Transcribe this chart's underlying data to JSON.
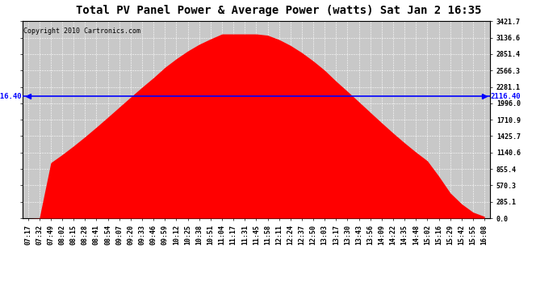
{
  "title": "Total PV Panel Power & Average Power (watts) Sat Jan 2 16:35",
  "copyright": "Copyright 2010 Cartronics.com",
  "avg_power": 2116.4,
  "y_max": 3421.7,
  "y_ticks": [
    0.0,
    285.1,
    570.3,
    855.4,
    1140.6,
    1425.7,
    1710.9,
    1996.0,
    2281.1,
    2566.3,
    2851.4,
    3136.6,
    3421.7
  ],
  "x_labels": [
    "07:17",
    "07:32",
    "07:49",
    "08:02",
    "08:15",
    "08:28",
    "08:41",
    "08:54",
    "09:07",
    "09:20",
    "09:33",
    "09:46",
    "09:59",
    "10:12",
    "10:25",
    "10:38",
    "10:51",
    "11:04",
    "11:17",
    "11:31",
    "11:45",
    "11:58",
    "12:11",
    "12:24",
    "12:37",
    "12:50",
    "13:03",
    "13:17",
    "13:30",
    "13:43",
    "13:56",
    "14:09",
    "14:22",
    "14:35",
    "14:48",
    "15:02",
    "15:16",
    "15:29",
    "15:42",
    "15:55",
    "16:08"
  ],
  "bg_color": "#ffffff",
  "plot_bg_color": "#c8c8c8",
  "fill_color": "#ff0000",
  "line_color": "#0000ff",
  "grid_color": "#ffffff",
  "title_fontsize": 10,
  "tick_fontsize": 6,
  "copyright_fontsize": 6
}
